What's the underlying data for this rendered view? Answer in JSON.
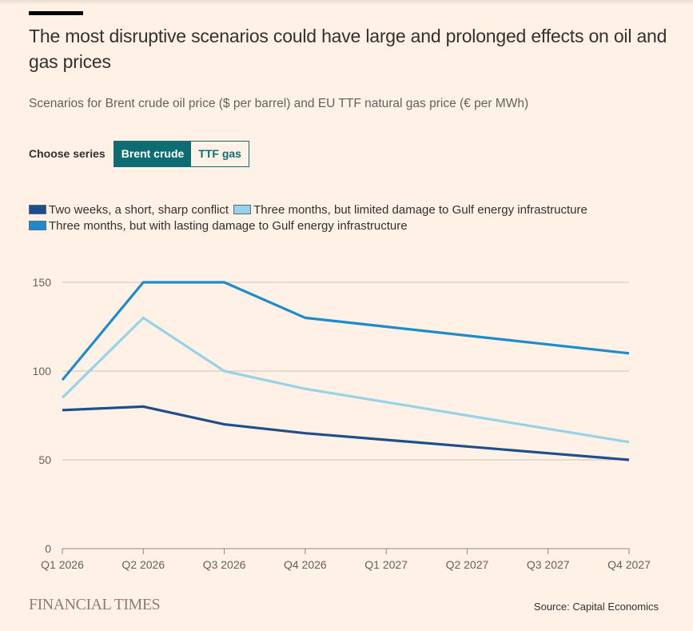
{
  "header": {
    "title": "The most disruptive scenarios could have large and prolonged effects on oil and gas prices",
    "subtitle": "Scenarios for Brent crude oil price ($ per barrel) and EU TTF natural gas price (€ per MWh)"
  },
  "chooser": {
    "label": "Choose series",
    "options": [
      {
        "label": "Brent crude",
        "selected": true
      },
      {
        "label": "TTF gas",
        "selected": false
      }
    ]
  },
  "footer": {
    "logo": "FINANCIAL TIMES",
    "source": "Source: Capital Economics"
  },
  "chart_data": {
    "type": "line",
    "title": "The most disruptive scenarios could have large and prolonged effects on oil and gas prices",
    "subtitle": "Scenarios for Brent crude oil price ($ per barrel) and EU TTF natural gas price (€ per MWh)",
    "xlabel": "",
    "ylabel": "",
    "x": [
      "Q1 2026",
      "Q2 2026",
      "Q3 2026",
      "Q4 2026",
      "Q1 2027",
      "Q2 2027",
      "Q3 2027",
      "Q4 2027"
    ],
    "yticks": [
      0,
      50,
      100,
      150
    ],
    "ylim": [
      0,
      150
    ],
    "grid": true,
    "legend_position": "top-left",
    "series": [
      {
        "name": "Two weeks, a short, sharp conflict",
        "color": "#1f4e8c",
        "values": [
          78,
          80,
          70,
          65,
          61.25,
          57.5,
          53.75,
          50
        ]
      },
      {
        "name": "Three months, but limited damage to Gulf energy infrastructure",
        "color": "#96d3e8",
        "values": [
          85,
          130,
          100,
          90,
          82.5,
          75,
          67.5,
          60
        ]
      },
      {
        "name": "Three months, but with lasting damage to Gulf energy infrastructure",
        "color": "#1e8ccc",
        "values": [
          95,
          150,
          150,
          130,
          125,
          120,
          115,
          110
        ]
      }
    ],
    "legend_rows": [
      [
        0,
        1
      ],
      [
        2
      ]
    ]
  }
}
